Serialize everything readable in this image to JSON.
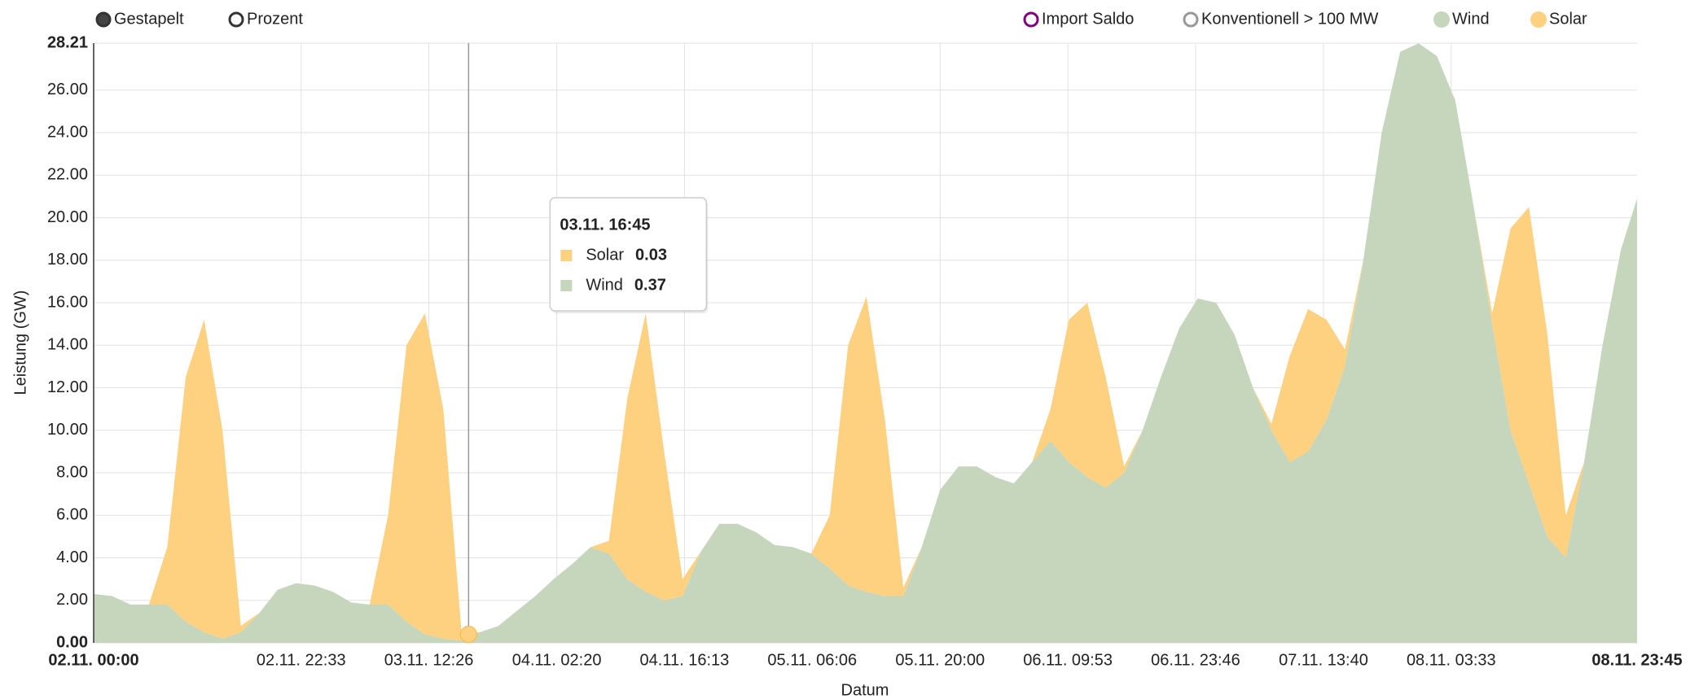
{
  "chart_data": {
    "type": "area",
    "stacked": true,
    "modes": [
      "Gestapelt",
      "Prozent"
    ],
    "mode": "Gestapelt",
    "x_label": "Datum",
    "y_label": "Leistung (GW)",
    "xlim": [
      "02.11. 00:00",
      "08.11. 23:45"
    ],
    "xticks": [
      "02.11. 22:33",
      "03.11. 12:26",
      "04.11. 02:20",
      "04.11. 16:13",
      "05.11. 06:06",
      "05.11. 20:00",
      "06.11. 09:53",
      "06.11. 23:46",
      "07.11. 13:40",
      "08.11. 03:33"
    ],
    "ylim": [
      0,
      28.21
    ],
    "yticks": [
      {
        "value": 0,
        "label": "0.00"
      },
      {
        "value": 2,
        "label": "2.00"
      },
      {
        "value": 4,
        "label": "4.00"
      },
      {
        "value": 6,
        "label": "6.00"
      },
      {
        "value": 8,
        "label": "8.00"
      },
      {
        "value": 10,
        "label": "10.00"
      },
      {
        "value": 12,
        "label": "12.00"
      },
      {
        "value": 14,
        "label": "14.00"
      },
      {
        "value": 16,
        "label": "16.00"
      },
      {
        "value": 18,
        "label": "18.00"
      },
      {
        "value": 20,
        "label": "20.00"
      },
      {
        "value": 22,
        "label": "22.00"
      },
      {
        "value": 24,
        "label": "24.00"
      },
      {
        "value": 26,
        "label": "26.00"
      },
      28.21
    ],
    "grid": true,
    "hidden_series": [
      {
        "name": "Import Saldo",
        "color": "#800080"
      },
      {
        "name": "Konventionell > 100 MW",
        "color": "#999999"
      }
    ],
    "x": [
      "02.11. 00:00",
      "02.11. 02:00",
      "02.11. 04:00",
      "02.11. 06:00",
      "02.11. 08:00",
      "02.11. 10:00",
      "02.11. 12:00",
      "02.11. 14:00",
      "02.11. 16:00",
      "02.11. 18:00",
      "02.11. 20:00",
      "02.11. 22:00",
      "03.11. 00:00",
      "03.11. 02:00",
      "03.11. 04:00",
      "03.11. 06:00",
      "03.11. 08:00",
      "03.11. 10:00",
      "03.11. 12:00",
      "03.11. 14:00",
      "03.11. 16:00",
      "03.11. 18:00",
      "03.11. 20:00",
      "03.11. 22:00",
      "04.11. 00:00",
      "04.11. 02:00",
      "04.11. 04:00",
      "04.11. 06:00",
      "04.11. 08:00",
      "04.11. 10:00",
      "04.11. 12:00",
      "04.11. 14:00",
      "04.11. 16:00",
      "04.11. 18:00",
      "04.11. 20:00",
      "04.11. 22:00",
      "05.11. 00:00",
      "05.11. 02:00",
      "05.11. 04:00",
      "05.11. 06:00",
      "05.11. 08:00",
      "05.11. 10:00",
      "05.11. 12:00",
      "05.11. 14:00",
      "05.11. 16:00",
      "05.11. 18:00",
      "05.11. 20:00",
      "05.11. 22:00",
      "06.11. 00:00",
      "06.11. 02:00",
      "06.11. 04:00",
      "06.11. 06:00",
      "06.11. 08:00",
      "06.11. 10:00",
      "06.11. 12:00",
      "06.11. 14:00",
      "06.11. 16:00",
      "06.11. 18:00",
      "06.11. 20:00",
      "06.11. 22:00",
      "07.11. 00:00",
      "07.11. 02:00",
      "07.11. 04:00",
      "07.11. 06:00",
      "07.11. 08:00",
      "07.11. 10:00",
      "07.11. 12:00",
      "07.11. 14:00",
      "07.11. 16:00",
      "07.11. 18:00",
      "07.11. 20:00",
      "07.11. 22:00",
      "08.11. 00:00",
      "08.11. 02:00",
      "08.11. 04:00",
      "08.11. 06:00",
      "08.11. 08:00",
      "08.11. 10:00",
      "08.11. 12:00",
      "08.11. 14:00",
      "08.11. 16:00",
      "08.11. 18:00",
      "08.11. 20:00",
      "08.11. 22:00",
      "08.11. 23:45"
    ],
    "series": [
      {
        "name": "Wind",
        "color": "#c5d6bd",
        "values": [
          2.3,
          2.2,
          1.8,
          1.8,
          1.8,
          1.0,
          0.5,
          0.2,
          0.5,
          1.4,
          2.5,
          2.8,
          2.7,
          2.4,
          1.9,
          1.8,
          1.8,
          1.0,
          0.4,
          0.2,
          0.1,
          0.5,
          0.8,
          1.5,
          2.2,
          3.0,
          3.7,
          4.5,
          4.2,
          3.0,
          2.4,
          2.0,
          2.2,
          4.3,
          5.6,
          5.6,
          5.2,
          4.6,
          4.5,
          4.2,
          3.5,
          2.7,
          2.4,
          2.2,
          2.2,
          4.5,
          7.2,
          8.3,
          8.3,
          7.8,
          7.5,
          8.5,
          9.5,
          8.5,
          7.8,
          7.3,
          8.0,
          10.0,
          12.5,
          14.8,
          16.2,
          16.0,
          14.5,
          12.0,
          10.0,
          8.5,
          9.0,
          10.5,
          13.0,
          18.0,
          24.0,
          27.8,
          28.2,
          27.6,
          25.5,
          20.5,
          15.0,
          10.0,
          7.5,
          5.0,
          4.0,
          8.5,
          14.0,
          18.5,
          20.9
        ]
      },
      {
        "name": "Solar",
        "color": "#fed181",
        "values": [
          0,
          0,
          0,
          0,
          2.7,
          11.5,
          14.7,
          9.8,
          0.3,
          0,
          0,
          0,
          0,
          0,
          0,
          0,
          4.2,
          13.0,
          15.1,
          10.8,
          0.3,
          0,
          0,
          0,
          0,
          0,
          0,
          0,
          0.6,
          8.5,
          13.1,
          7.0,
          0.8,
          0,
          0,
          0,
          0,
          0,
          0,
          0,
          2.5,
          11.3,
          13.9,
          8.3,
          0.4,
          0,
          0,
          0,
          0,
          0,
          0,
          0,
          1.5,
          6.7,
          8.2,
          5.2,
          0.3,
          0,
          0,
          0,
          0,
          0,
          0,
          0,
          0.3,
          5.0,
          6.7,
          4.7,
          0.8,
          0,
          0,
          0,
          0,
          0,
          0,
          0,
          0.5,
          9.5,
          13.0,
          9.5,
          2.0,
          0,
          0,
          0,
          0
        ]
      }
    ],
    "tooltip": {
      "title": "03.11. 16:45",
      "items": [
        {
          "name": "Solar",
          "value": 0.03
        },
        {
          "name": "Wind",
          "value": 0.37
        }
      ]
    }
  }
}
